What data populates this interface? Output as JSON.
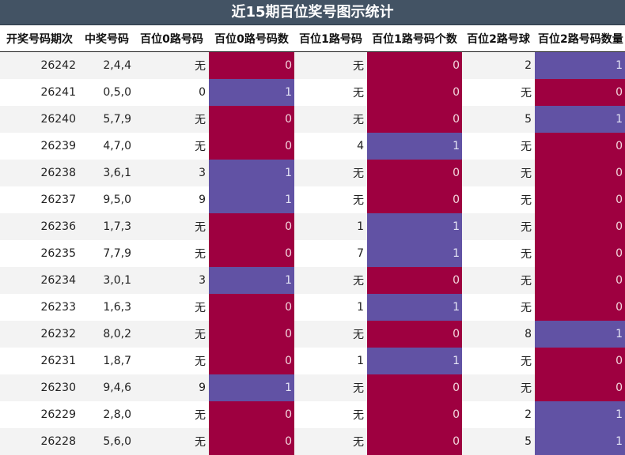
{
  "title": "近15期百位奖号图示统计",
  "headers": [
    "开奖号码期次",
    "中奖号码",
    "百位0路号码",
    "百位0路号码数",
    "百位1路号码",
    "百位1路号码个数",
    "百位2路号球",
    "百位2路号码数量"
  ],
  "colors": {
    "count_one": "#6152a4",
    "count_zero": "#9e0040",
    "title_bg": "#435364"
  },
  "rows": [
    [
      "26242",
      "2,4,4",
      "无",
      "0",
      "无",
      "0",
      "2",
      "1"
    ],
    [
      "26241",
      "0,5,0",
      "0",
      "1",
      "无",
      "0",
      "无",
      "0"
    ],
    [
      "26240",
      "5,7,9",
      "无",
      "0",
      "无",
      "0",
      "5",
      "1"
    ],
    [
      "26239",
      "4,7,0",
      "无",
      "0",
      "4",
      "1",
      "无",
      "0"
    ],
    [
      "26238",
      "3,6,1",
      "3",
      "1",
      "无",
      "0",
      "无",
      "0"
    ],
    [
      "26237",
      "9,5,0",
      "9",
      "1",
      "无",
      "0",
      "无",
      "0"
    ],
    [
      "26236",
      "1,7,3",
      "无",
      "0",
      "1",
      "1",
      "无",
      "0"
    ],
    [
      "26235",
      "7,7,9",
      "无",
      "0",
      "7",
      "1",
      "无",
      "0"
    ],
    [
      "26234",
      "3,0,1",
      "3",
      "1",
      "无",
      "0",
      "无",
      "0"
    ],
    [
      "26233",
      "1,6,3",
      "无",
      "0",
      "1",
      "1",
      "无",
      "0"
    ],
    [
      "26232",
      "8,0,2",
      "无",
      "0",
      "无",
      "0",
      "8",
      "1"
    ],
    [
      "26231",
      "1,8,7",
      "无",
      "0",
      "1",
      "1",
      "无",
      "0"
    ],
    [
      "26230",
      "9,4,6",
      "9",
      "1",
      "无",
      "0",
      "无",
      "0"
    ],
    [
      "26229",
      "2,8,0",
      "无",
      "0",
      "无",
      "0",
      "2",
      "1"
    ],
    [
      "26228",
      "5,6,0",
      "无",
      "0",
      "无",
      "0",
      "5",
      "1"
    ]
  ]
}
